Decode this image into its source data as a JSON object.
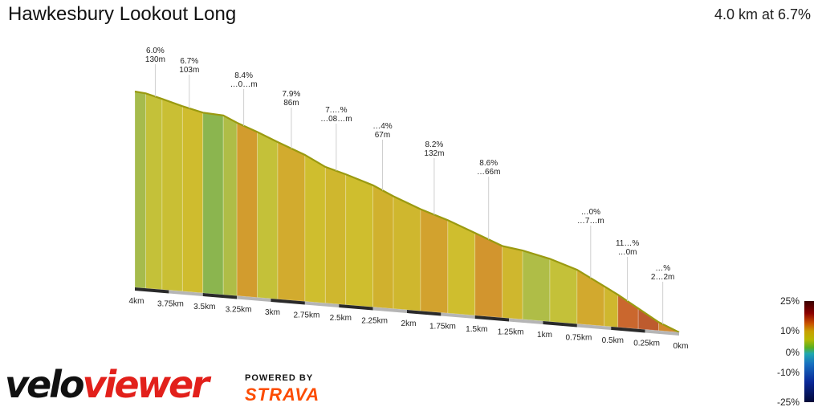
{
  "header": {
    "title": "Hawkesbury Lookout Long",
    "summary": "4.0 km at 6.7%"
  },
  "branding": {
    "logo_part1": "velo",
    "logo_part2": "viewer",
    "powered_by": "POWERED BY",
    "partner": "STRAVA"
  },
  "colors": {
    "brand_red": "#e2201b",
    "strava_orange": "#fc4c02"
  },
  "chart_data": {
    "type": "area",
    "title": "Hawkesbury Lookout Long",
    "subtitle": "4.0 km at 6.7%",
    "x_unit": "km",
    "x_direction": "descending",
    "xlim": [
      4.0,
      0
    ],
    "x_ticks": [
      "4km",
      "3.75km",
      "3.5km",
      "3.25km",
      "3km",
      "2.75km",
      "2.5km",
      "2.25km",
      "2km",
      "1.75km",
      "1.5km",
      "1.25km",
      "1km",
      "0.75km",
      "0.5km",
      "0.25km",
      "0km"
    ],
    "x": [
      4.0,
      3.92,
      3.8,
      3.65,
      3.5,
      3.35,
      3.25,
      3.1,
      2.95,
      2.75,
      2.6,
      2.45,
      2.25,
      2.1,
      1.9,
      1.7,
      1.5,
      1.3,
      1.15,
      0.95,
      0.75,
      0.55,
      0.45,
      0.3,
      0.15,
      0.0
    ],
    "elevation_relative": [
      100,
      99,
      96,
      92,
      88.5,
      87,
      83,
      78,
      72.5,
      65.5,
      59,
      55,
      49,
      43,
      36,
      30,
      23,
      16,
      13.5,
      9,
      3,
      -6,
      -10.5,
      -18,
      -25.5,
      -31
    ],
    "segments": [
      {
        "from_km": 4.0,
        "to_km": 3.92,
        "gradient_pct": 3.4
      },
      {
        "from_km": 3.92,
        "to_km": 3.8,
        "gradient_pct": 5.5
      },
      {
        "from_km": 3.8,
        "to_km": 3.65,
        "gradient_pct": 6.0
      },
      {
        "from_km": 3.65,
        "to_km": 3.5,
        "gradient_pct": 6.7
      },
      {
        "from_km": 3.5,
        "to_km": 3.35,
        "gradient_pct": 1.5
      },
      {
        "from_km": 3.35,
        "to_km": 3.25,
        "gradient_pct": 4.0
      },
      {
        "from_km": 3.25,
        "to_km": 3.1,
        "gradient_pct": 8.4
      },
      {
        "from_km": 3.1,
        "to_km": 2.95,
        "gradient_pct": 5.5
      },
      {
        "from_km": 2.95,
        "to_km": 2.75,
        "gradient_pct": 7.9
      },
      {
        "from_km": 2.75,
        "to_km": 2.6,
        "gradient_pct": 6.5
      },
      {
        "from_km": 2.6,
        "to_km": 2.45,
        "gradient_pct": 7.0
      },
      {
        "from_km": 2.45,
        "to_km": 2.25,
        "gradient_pct": 6.5
      },
      {
        "from_km": 2.25,
        "to_km": 2.1,
        "gradient_pct": 7.4
      },
      {
        "from_km": 2.1,
        "to_km": 1.9,
        "gradient_pct": 7.0
      },
      {
        "from_km": 1.9,
        "to_km": 1.7,
        "gradient_pct": 8.2
      },
      {
        "from_km": 1.7,
        "to_km": 1.5,
        "gradient_pct": 6.5
      },
      {
        "from_km": 1.5,
        "to_km": 1.3,
        "gradient_pct": 8.6
      },
      {
        "from_km": 1.3,
        "to_km": 1.15,
        "gradient_pct": 7.0
      },
      {
        "from_km": 1.15,
        "to_km": 0.95,
        "gradient_pct": 4.0
      },
      {
        "from_km": 0.95,
        "to_km": 0.75,
        "gradient_pct": 5.5
      },
      {
        "from_km": 0.75,
        "to_km": 0.55,
        "gradient_pct": 8.0
      },
      {
        "from_km": 0.55,
        "to_km": 0.45,
        "gradient_pct": 7.0
      },
      {
        "from_km": 0.45,
        "to_km": 0.3,
        "gradient_pct": 11.0
      },
      {
        "from_km": 0.3,
        "to_km": 0.15,
        "gradient_pct": 12.0
      },
      {
        "from_km": 0.15,
        "to_km": 0.0,
        "gradient_pct": 9.0
      }
    ],
    "annotations": [
      {
        "x_km": 3.85,
        "grade": "6.0%",
        "length": "130m"
      },
      {
        "x_km": 3.6,
        "grade": "6.7%",
        "length": "103m"
      },
      {
        "x_km": 3.2,
        "grade": "8.4%",
        "length": "…0…m"
      },
      {
        "x_km": 2.85,
        "grade": "7.9%",
        "length": "86m"
      },
      {
        "x_km": 2.52,
        "grade": "7.…%",
        "length": "…08…m"
      },
      {
        "x_km": 2.18,
        "grade": "…4%",
        "length": "67m"
      },
      {
        "x_km": 1.8,
        "grade": "8.2%",
        "length": "132m"
      },
      {
        "x_km": 1.4,
        "grade": "8.6%",
        "length": "…66m"
      },
      {
        "x_km": 0.65,
        "grade": "…0%",
        "length": "…7…m"
      },
      {
        "x_km": 0.38,
        "grade": "11…%",
        "length": "…0m"
      },
      {
        "x_km": 0.12,
        "grade": "…%",
        "length": "2…2m"
      }
    ],
    "legend": {
      "labels": [
        "25%",
        "10%",
        "0%",
        "-10%",
        "-25%"
      ],
      "placement": "bottom-right"
    }
  }
}
